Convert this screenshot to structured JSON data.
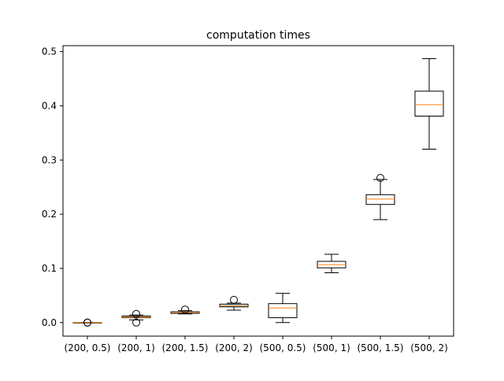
{
  "chart_data": {
    "type": "box",
    "title": "computation times",
    "xlabel": "",
    "ylabel": "",
    "ylim": [
      -0.025,
      0.511
    ],
    "yticks": [
      0.0,
      0.1,
      0.2,
      0.3,
      0.4,
      0.5
    ],
    "ytick_labels": [
      "0.0",
      "0.1",
      "0.2",
      "0.3",
      "0.4",
      "0.5"
    ],
    "categories": [
      "(200, 0.5)",
      "(200, 1)",
      "(200, 1.5)",
      "(200, 2)",
      "(500, 0.5)",
      "(500, 1)",
      "(500, 1.5)",
      "(500, 2)"
    ],
    "grid": false,
    "box_color": "#000000",
    "median_color": "#ff7f0e",
    "boxes": [
      {
        "whislo": 0.0,
        "q1": 0.0,
        "med": 0.0,
        "q3": 0.0,
        "whishi": 0.0,
        "fliers": [
          0.0,
          0.0
        ]
      },
      {
        "whislo": 0.005,
        "q1": 0.009,
        "med": 0.01,
        "q3": 0.012,
        "whishi": 0.014,
        "fliers": [
          0.0,
          0.016
        ]
      },
      {
        "whislo": 0.016,
        "q1": 0.017,
        "med": 0.019,
        "q3": 0.02,
        "whishi": 0.022,
        "fliers": [
          0.024
        ]
      },
      {
        "whislo": 0.023,
        "q1": 0.029,
        "med": 0.031,
        "q3": 0.034,
        "whishi": 0.036,
        "fliers": [
          0.042
        ]
      },
      {
        "whislo": 0.0,
        "q1": 0.009,
        "med": 0.027,
        "q3": 0.035,
        "whishi": 0.054,
        "fliers": []
      },
      {
        "whislo": 0.092,
        "q1": 0.101,
        "med": 0.107,
        "q3": 0.113,
        "whishi": 0.126,
        "fliers": []
      },
      {
        "whislo": 0.19,
        "q1": 0.218,
        "med": 0.228,
        "q3": 0.236,
        "whishi": 0.264,
        "fliers": [
          0.267
        ]
      },
      {
        "whislo": 0.32,
        "q1": 0.381,
        "med": 0.402,
        "q3": 0.427,
        "whishi": 0.487,
        "fliers": []
      }
    ]
  }
}
